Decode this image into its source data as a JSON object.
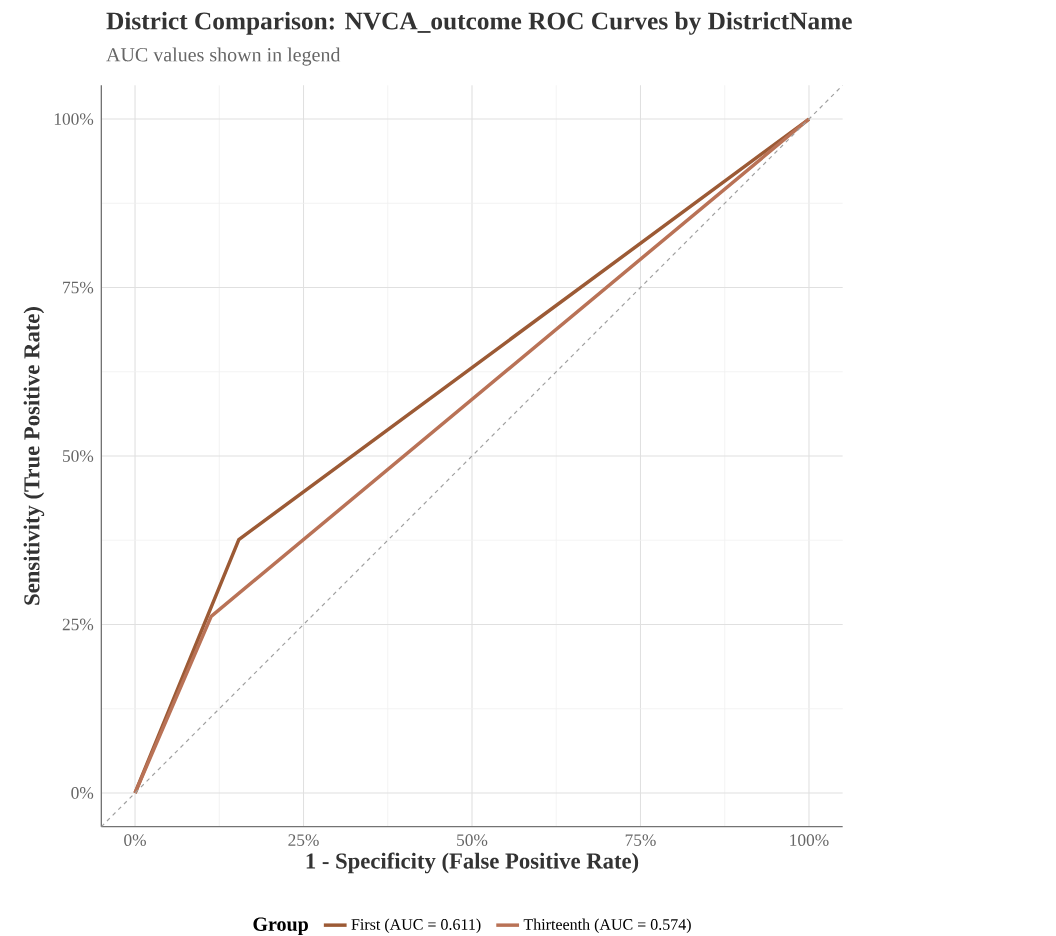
{
  "chart_data": {
    "type": "line",
    "title": "District Comparison: NVCA_outcome ROC Curves by DistrictName",
    "subtitle": "AUC values shown in legend",
    "xlabel": "1 - Specificity (False Positive Rate)",
    "ylabel": "Sensitivity (True Positive Rate)",
    "legend_title": "Group",
    "series": [
      {
        "name": "First (AUC = 0.611)",
        "color": "#9c5a35",
        "x": [
          0,
          0.154,
          1
        ],
        "values": [
          0,
          0.376,
          1
        ]
      },
      {
        "name": "Thirteenth (AUC = 0.574)",
        "color": "#b97256",
        "x": [
          0,
          0.113,
          1
        ],
        "values": [
          0,
          0.262,
          1
        ]
      },
      {
        "color": "#a0a0a0",
        "line_style": "dashed",
        "x": [
          -0.05,
          1.05
        ],
        "values": [
          -0.05,
          1.05
        ]
      }
    ],
    "xlim": [
      -0.05,
      1.05
    ],
    "ylim": [
      -0.05,
      1.05
    ],
    "xticks": [
      {
        "value": 0,
        "label": "0%"
      },
      {
        "value": 0.25,
        "label": "25%"
      },
      {
        "value": 0.5,
        "label": "50%"
      },
      {
        "value": 0.75,
        "label": "75%"
      },
      {
        "value": 1,
        "label": "100%"
      }
    ],
    "yticks": [
      {
        "value": 0,
        "label": "0%"
      },
      {
        "value": 0.25,
        "label": "25%"
      },
      {
        "value": 0.5,
        "label": "50%"
      },
      {
        "value": 0.75,
        "label": "75%"
      },
      {
        "value": 1,
        "label": "100%"
      }
    ],
    "grid": true,
    "legend": "bottom"
  }
}
